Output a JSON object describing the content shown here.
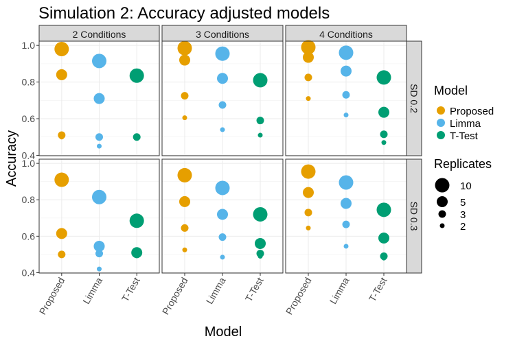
{
  "chart_data": {
    "type": "scatter",
    "title": "Simulation 2: Accuracy adjusted models",
    "xlabel": "Model",
    "ylabel": "Accuracy",
    "categories": [
      "Proposed",
      "Limma",
      "T-Test"
    ],
    "facet_cols": [
      "2 Conditions",
      "3 Conditions",
      "4 Conditions"
    ],
    "facet_rows": [
      "SD 0.2",
      "SD 0.3"
    ],
    "row_ylim": [
      [
        0.4,
        1.0
      ],
      [
        0.4,
        1.0
      ]
    ],
    "row_yticks": [
      [
        "0.4",
        "0.6",
        "0.8",
        "1.0"
      ],
      [
        "0.4",
        "0.6",
        "0.8",
        "1.0"
      ]
    ],
    "grid": true,
    "colors": {
      "Proposed": "#E69F00",
      "Limma": "#56B4E9",
      "T-Test": "#009E73"
    },
    "legend": {
      "placement": "right",
      "color_title": "Model",
      "color_items": [
        "Proposed",
        "Limma",
        "T-Test"
      ],
      "size_title": "Replicates",
      "size_items": [
        "10",
        "5",
        "3",
        "2"
      ]
    },
    "replicates": [
      10,
      5,
      3,
      2
    ],
    "panels": [
      {
        "row": 0,
        "col": 0,
        "points": {
          "Proposed": [
            0.98,
            0.84,
            0.51,
            0.5
          ],
          "Limma": [
            0.915,
            0.71,
            0.5,
            0.45
          ],
          "T-Test": [
            0.835,
            0.835,
            0.5,
            0.5
          ]
        }
      },
      {
        "row": 0,
        "col": 1,
        "points": {
          "Proposed": [
            0.985,
            0.92,
            0.725,
            0.605
          ],
          "Limma": [
            0.955,
            0.82,
            0.675,
            0.54
          ],
          "T-Test": [
            0.81,
            0.805,
            0.59,
            0.51
          ]
        }
      },
      {
        "row": 0,
        "col": 2,
        "points": {
          "Proposed": [
            0.99,
            0.935,
            0.825,
            0.71
          ],
          "Limma": [
            0.96,
            0.86,
            0.73,
            0.62
          ],
          "T-Test": [
            0.825,
            0.635,
            0.515,
            0.47
          ]
        }
      },
      {
        "row": 1,
        "col": 0,
        "points": {
          "Proposed": [
            0.91,
            0.615,
            0.5,
            0.5
          ],
          "Limma": [
            0.815,
            0.545,
            0.505,
            0.42
          ]
        },
        "extra": {
          "T-Test": [
            0.685,
            0.51,
            0.5,
            0.495
          ]
        }
      },
      {
        "row": 1,
        "col": 1,
        "points": {
          "Proposed": [
            0.935,
            0.79,
            0.645,
            0.525
          ],
          "Limma": [
            0.865,
            0.72,
            0.595,
            0.485
          ],
          "T-Test": [
            0.72,
            0.56,
            0.505,
            0.49
          ]
        }
      },
      {
        "row": 1,
        "col": 2,
        "points": {
          "Proposed": [
            0.955,
            0.84,
            0.73,
            0.645
          ],
          "Limma": [
            0.895,
            0.78,
            0.665,
            0.545
          ],
          "T-Test": [
            0.745,
            0.59,
            0.49,
            0.48
          ]
        }
      }
    ]
  }
}
